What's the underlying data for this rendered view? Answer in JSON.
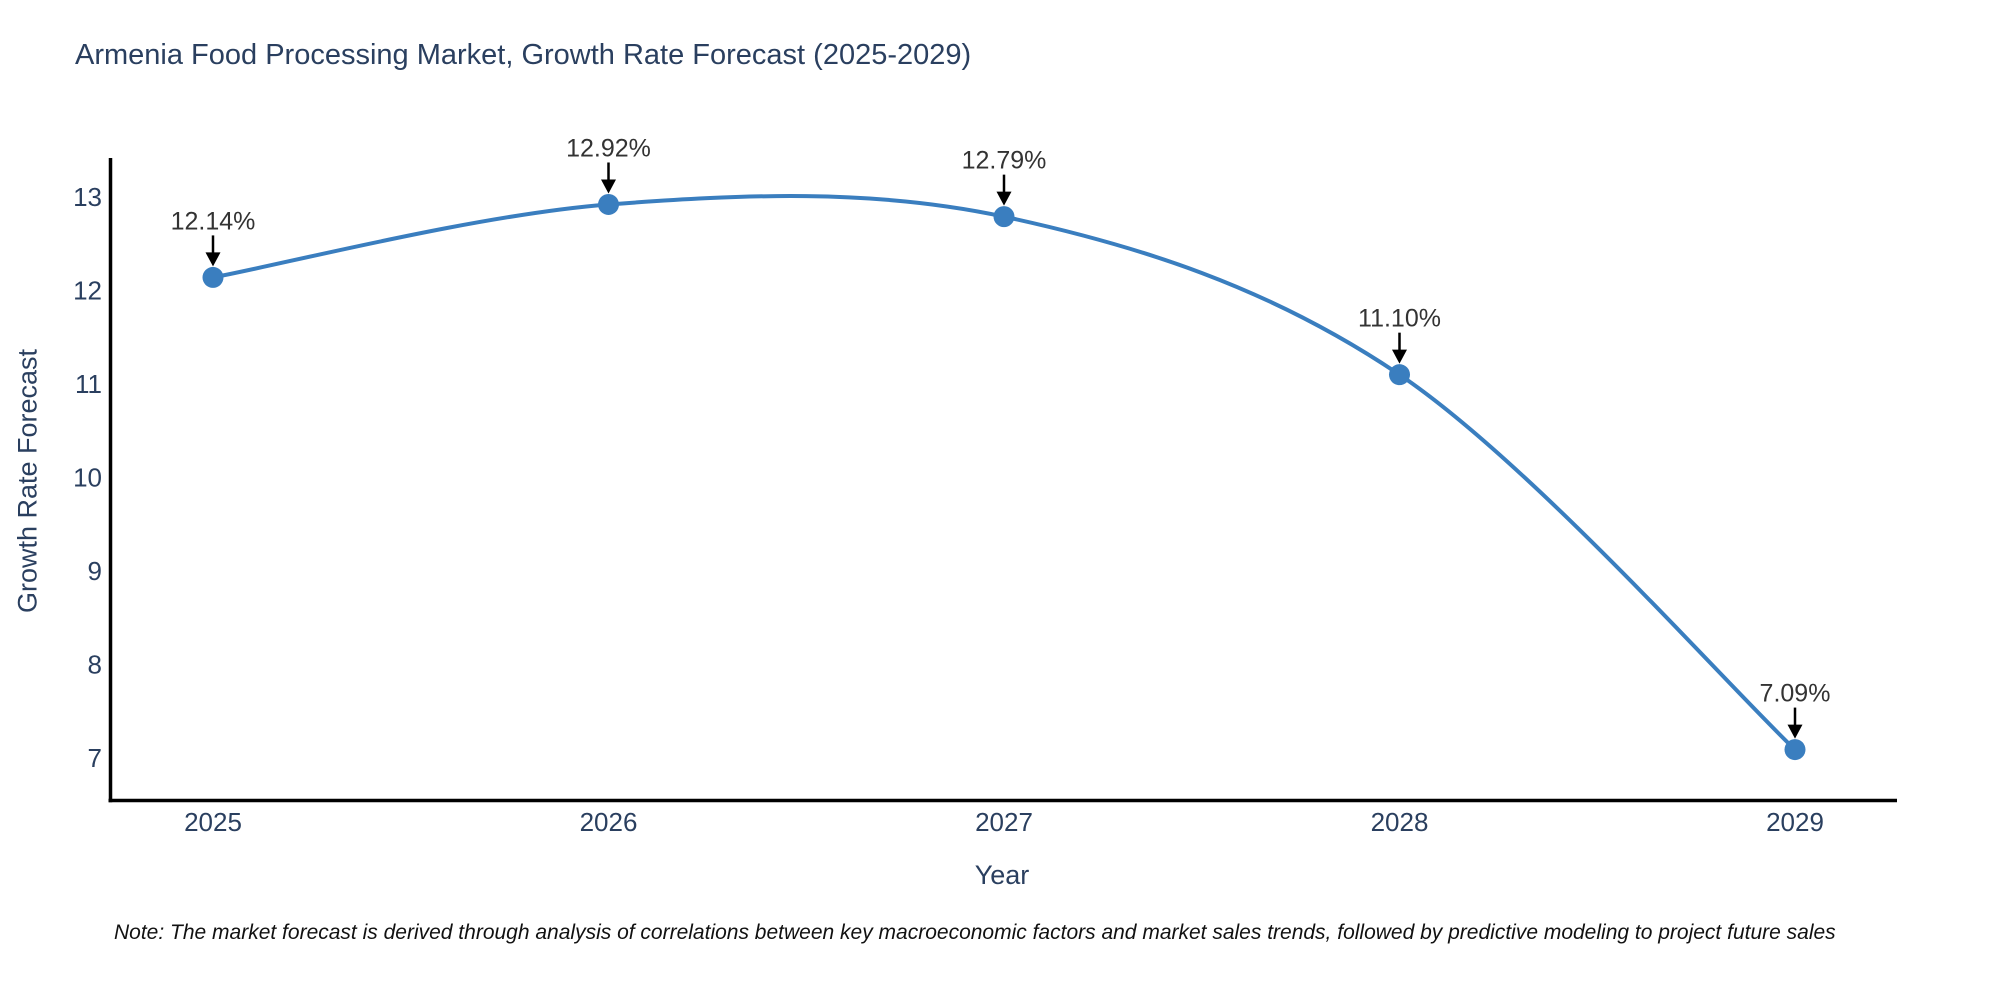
{
  "note": "Note: The market forecast is derived through analysis of correlations between key macroeconomic factors and market sales trends, followed by predictive modeling to project future sales",
  "chart_data": {
    "type": "line",
    "title": "Armenia Food Processing Market, Growth Rate Forecast (2025-2029)",
    "xlabel": "Year",
    "ylabel": "Growth Rate Forecast",
    "x": [
      2025,
      2026,
      2027,
      2028,
      2029
    ],
    "values": [
      12.14,
      12.92,
      12.79,
      11.1,
      7.09
    ],
    "point_labels": [
      "12.14%",
      "12.92%",
      "12.79%",
      "11.10%",
      "7.09%"
    ],
    "x_tick_labels": [
      "2025",
      "2026",
      "2027",
      "2028",
      "2029"
    ],
    "y_ticks": [
      7,
      8,
      9,
      10,
      11,
      12,
      13
    ],
    "ylim": [
      6.54,
      13.42
    ],
    "line_shape": "spline",
    "grid": false,
    "legend": false,
    "colors": {
      "line": "#3a7ebf",
      "marker": "#3a7ebf",
      "axis_line": "#000000",
      "tick_text": "#2a3f5f",
      "title_text": "#2a3f5f",
      "annotation_text": "#333333",
      "annotation_arrow": "#000000"
    }
  }
}
